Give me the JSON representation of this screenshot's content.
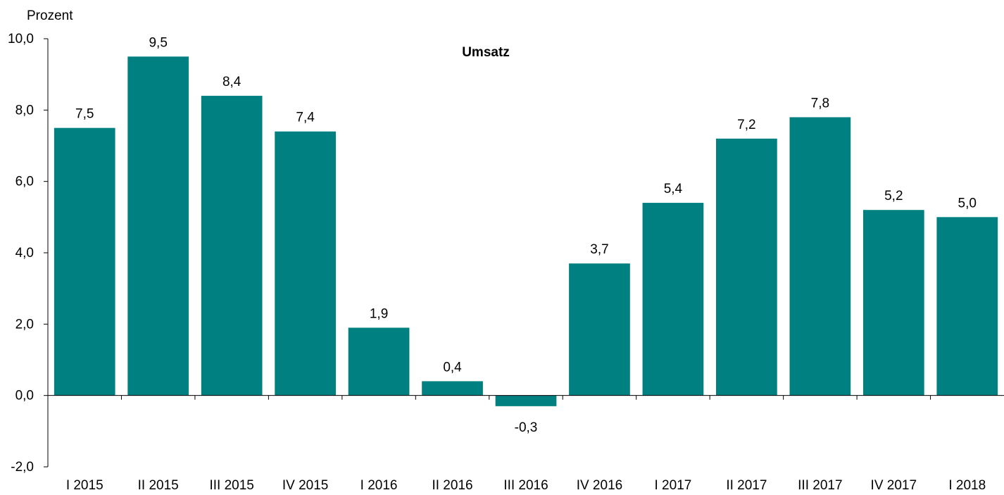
{
  "chart_data": {
    "type": "bar",
    "title": "Umsatz",
    "ylabel": "Prozent",
    "xlabel": "",
    "categories": [
      "I 2015",
      "II 2015",
      "III 2015",
      "IV 2015",
      "I 2016",
      "II 2016",
      "III 2016",
      "IV 2016",
      "I 2017",
      "II 2017",
      "III 2017",
      "IV 2017",
      "I 2018"
    ],
    "values": [
      7.5,
      9.5,
      8.4,
      7.4,
      1.9,
      0.4,
      -0.3,
      3.7,
      5.4,
      7.2,
      7.8,
      5.2,
      5.0
    ],
    "value_labels": [
      "7,5",
      "9,5",
      "8,4",
      "7,4",
      "1,9",
      "0,4",
      "-0,3",
      "3,7",
      "5,4",
      "7,2",
      "7,8",
      "5,2",
      "5,0"
    ],
    "ylim": [
      -2.0,
      10.0
    ],
    "yticks": [
      -2.0,
      0.0,
      2.0,
      4.0,
      6.0,
      8.0,
      10.0
    ],
    "ytick_labels": [
      "-2,0",
      "0,0",
      "2,0",
      "4,0",
      "6,0",
      "8,0",
      "10,0"
    ],
    "bar_color": "#008080",
    "grid": false,
    "legend": "none"
  }
}
